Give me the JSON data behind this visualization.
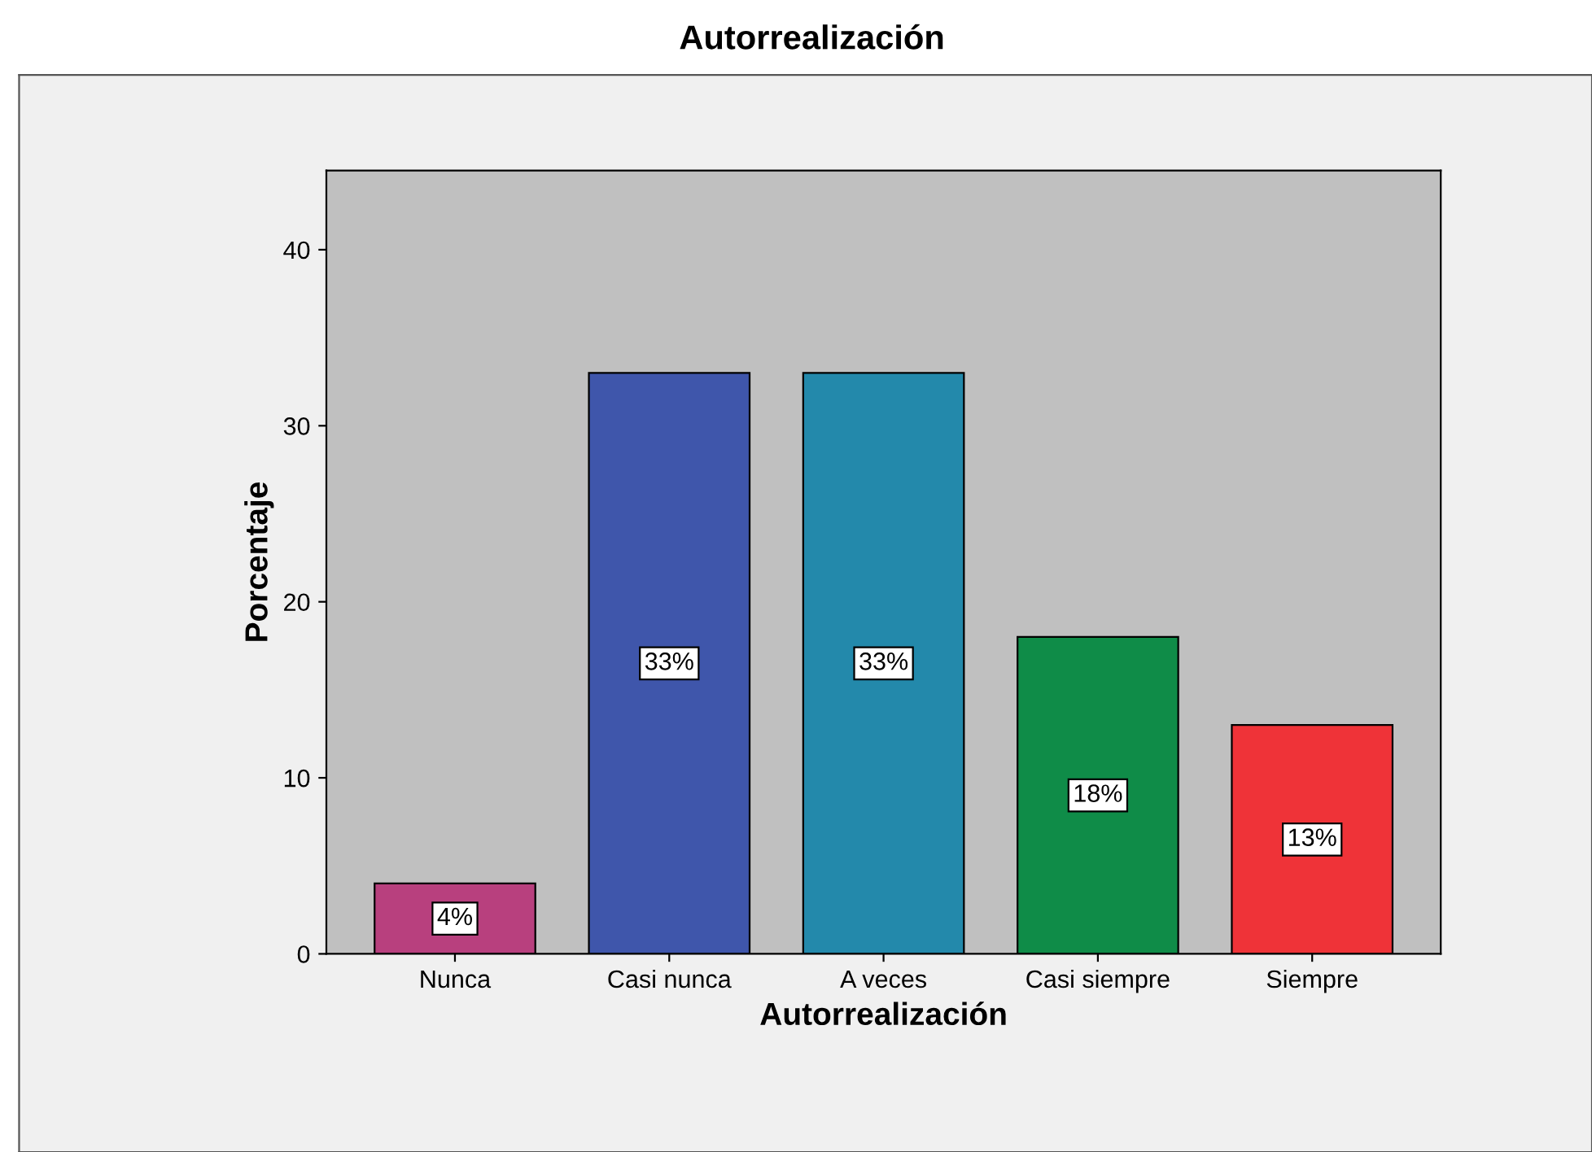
{
  "chart_data": {
    "type": "bar",
    "title": "Autorrealización",
    "xlabel": "Autorrealización",
    "ylabel": "Porcentaje",
    "categories": [
      "Nunca",
      "Casi nunca",
      "A veces",
      "Casi siempre",
      "Siempre"
    ],
    "values": [
      4,
      33,
      33,
      18,
      13
    ],
    "colors": [
      "#b8407e",
      "#3f56ab",
      "#2389ab",
      "#0f8c48",
      "#ef3338"
    ],
    "value_labels": [
      "4%",
      "33%",
      "33%",
      "18%",
      "13%"
    ],
    "ylim": [
      0,
      44.5
    ],
    "yticks": [
      0,
      10,
      20,
      30,
      40
    ],
    "grid": false,
    "legend": false
  }
}
